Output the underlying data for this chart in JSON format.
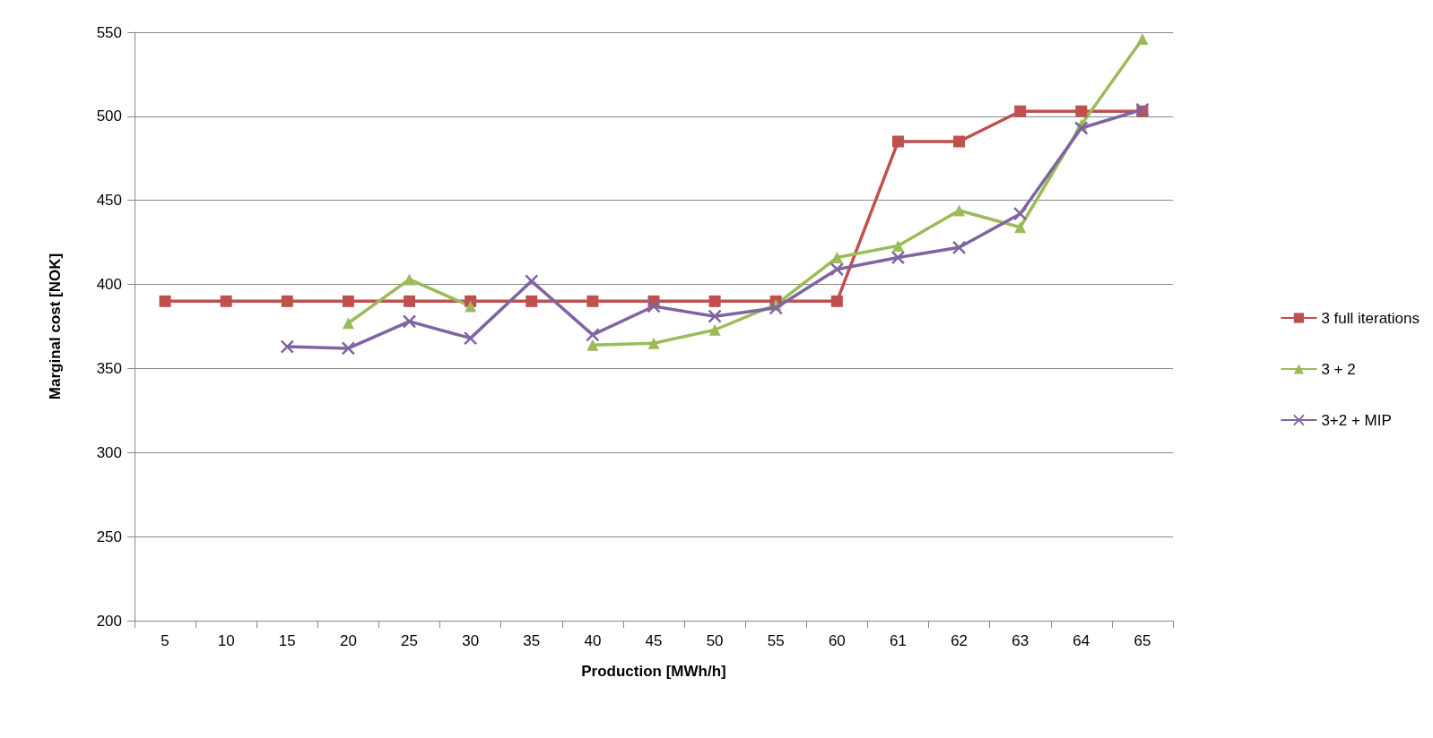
{
  "chart_data": {
    "type": "line",
    "xlabel": "Production [MWh/h]",
    "ylabel": "Marginal cost [NOK]",
    "categories": [
      "5",
      "10",
      "15",
      "20",
      "25",
      "30",
      "35",
      "40",
      "45",
      "50",
      "55",
      "60",
      "61",
      "62",
      "63",
      "64",
      "65"
    ],
    "ylim": [
      200,
      550
    ],
    "yticks": [
      200,
      250,
      300,
      350,
      400,
      450,
      500,
      550
    ],
    "grid": "y",
    "legend": "right",
    "series": [
      {
        "name": "3 full iterations",
        "color": "#c0504d",
        "marker": "square",
        "values": [
          390,
          390,
          390,
          390,
          390,
          390,
          390,
          390,
          390,
          390,
          390,
          390,
          485,
          485,
          503,
          503,
          503
        ]
      },
      {
        "name": "3 + 2",
        "color": "#9bbb59",
        "marker": "triangle",
        "values": [
          null,
          null,
          null,
          377,
          403,
          387,
          null,
          364,
          365,
          373,
          388,
          416,
          423,
          444,
          434,
          495,
          546
        ]
      },
      {
        "name": "3+2 + MIP",
        "color": "#8064a2",
        "marker": "cross",
        "values": [
          null,
          null,
          363,
          362,
          378,
          368,
          402,
          370,
          387,
          381,
          386,
          409,
          416,
          422,
          442,
          493,
          504
        ]
      }
    ]
  }
}
